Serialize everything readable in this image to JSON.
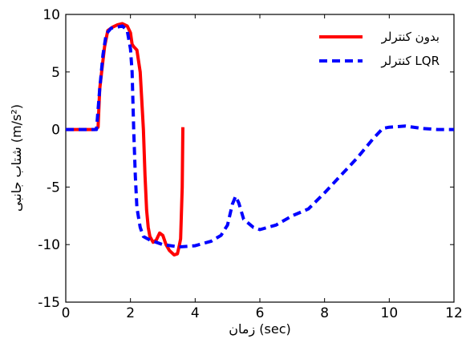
{
  "chart_data": {
    "type": "line",
    "xlabel": "زمان (sec)",
    "ylabel": "شتاب جانبی (m/s²)",
    "xlim": [
      0,
      12
    ],
    "ylim": [
      -15,
      10
    ],
    "xticks": [
      0,
      2,
      4,
      6,
      8,
      10,
      12
    ],
    "yticks": [
      -15,
      -10,
      -5,
      0,
      5,
      10
    ],
    "grid": false,
    "legend_position": "top-right",
    "series": [
      {
        "name": "بدون کنترلر",
        "color": "#ff0000",
        "style": "solid",
        "points": [
          [
            0,
            0
          ],
          [
            0.9,
            0
          ],
          [
            1.0,
            0.2
          ],
          [
            1.05,
            3.5
          ],
          [
            1.12,
            5.3
          ],
          [
            1.2,
            7.2
          ],
          [
            1.3,
            8.6
          ],
          [
            1.45,
            8.9
          ],
          [
            1.6,
            9.1
          ],
          [
            1.75,
            9.2
          ],
          [
            1.9,
            9.0
          ],
          [
            2.0,
            8.4
          ],
          [
            2.05,
            7.4
          ],
          [
            2.1,
            7.2
          ],
          [
            2.2,
            6.9
          ],
          [
            2.3,
            5.0
          ],
          [
            2.4,
            0.0
          ],
          [
            2.45,
            -4.0
          ],
          [
            2.5,
            -7.0
          ],
          [
            2.55,
            -8.5
          ],
          [
            2.6,
            -9.3
          ],
          [
            2.7,
            -9.8
          ],
          [
            2.8,
            -9.6
          ],
          [
            2.9,
            -9.0
          ],
          [
            3.0,
            -9.2
          ],
          [
            3.1,
            -10.0
          ],
          [
            3.2,
            -10.5
          ],
          [
            3.35,
            -10.9
          ],
          [
            3.45,
            -10.8
          ],
          [
            3.5,
            -10.2
          ],
          [
            3.55,
            -9.5
          ],
          [
            3.6,
            -5.0
          ],
          [
            3.62,
            0.2
          ]
        ]
      },
      {
        "name": "کنترلر LQR",
        "color": "#0000ff",
        "style": "dashed",
        "points": [
          [
            0,
            0
          ],
          [
            0.95,
            0
          ],
          [
            1.05,
            3.5
          ],
          [
            1.15,
            6.5
          ],
          [
            1.25,
            8.3
          ],
          [
            1.4,
            8.8
          ],
          [
            1.6,
            8.9
          ],
          [
            1.75,
            9.0
          ],
          [
            1.9,
            8.6
          ],
          [
            2.0,
            7.0
          ],
          [
            2.05,
            5.0
          ],
          [
            2.1,
            0.0
          ],
          [
            2.15,
            -4.0
          ],
          [
            2.2,
            -6.8
          ],
          [
            2.3,
            -8.5
          ],
          [
            2.4,
            -9.3
          ],
          [
            2.6,
            -9.6
          ],
          [
            2.8,
            -9.8
          ],
          [
            3.0,
            -10.0
          ],
          [
            3.5,
            -10.2
          ],
          [
            4.0,
            -10.1
          ],
          [
            4.5,
            -9.7
          ],
          [
            4.8,
            -9.2
          ],
          [
            5.0,
            -8.3
          ],
          [
            5.15,
            -6.5
          ],
          [
            5.25,
            -5.8
          ],
          [
            5.35,
            -6.4
          ],
          [
            5.5,
            -7.8
          ],
          [
            5.8,
            -8.5
          ],
          [
            6.0,
            -8.7
          ],
          [
            6.5,
            -8.3
          ],
          [
            7.0,
            -7.5
          ],
          [
            7.5,
            -6.9
          ],
          [
            8.0,
            -5.5
          ],
          [
            8.5,
            -4.0
          ],
          [
            9.0,
            -2.5
          ],
          [
            9.5,
            -0.8
          ],
          [
            9.8,
            0.1
          ],
          [
            10.0,
            0.2
          ],
          [
            10.5,
            0.3
          ],
          [
            11.0,
            0.1
          ],
          [
            11.5,
            0.0
          ],
          [
            12.0,
            0.0
          ]
        ]
      }
    ]
  }
}
